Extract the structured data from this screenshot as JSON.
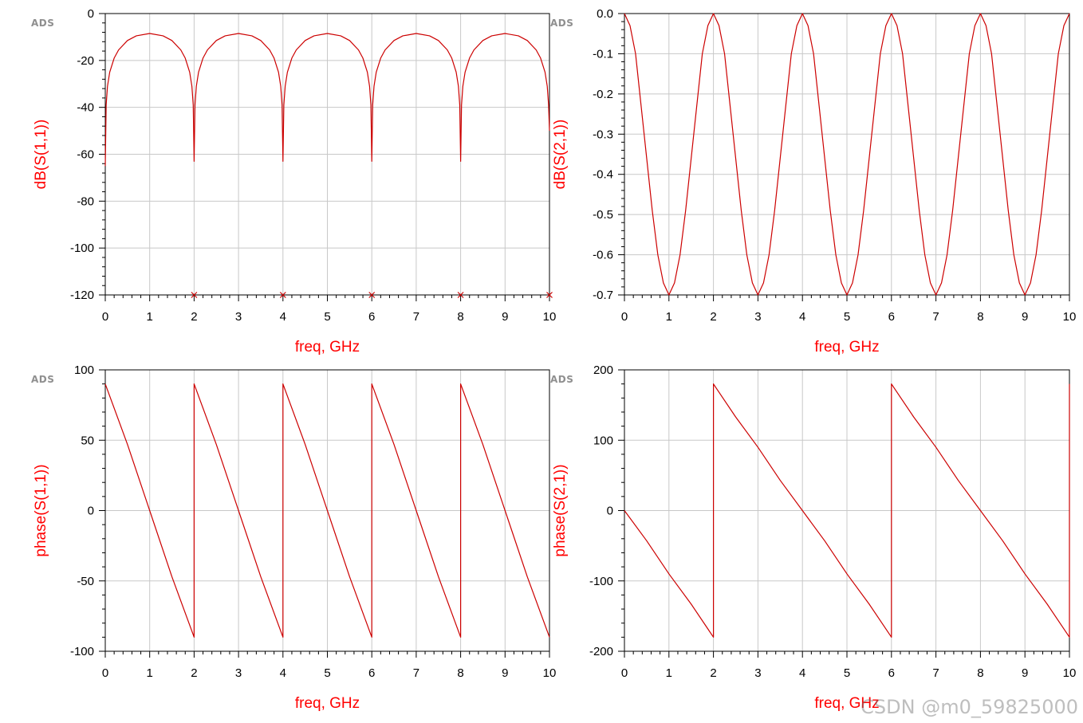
{
  "watermark": "CSDN @m0_59825000",
  "colors": {
    "trace": "#cc0000",
    "label": "#ff0000",
    "grid": "#c8c8c8",
    "frame": "#000000",
    "logo": "#8f8f8f"
  },
  "chart_data": [
    {
      "type": "line",
      "logo": "ADS",
      "xlabel": "freq, GHz",
      "ylabel": "dB(S(1,1))",
      "xlim": [
        0,
        10
      ],
      "ylim": [
        -120,
        0
      ],
      "xticks": [
        "0",
        "1",
        "2",
        "3",
        "4",
        "5",
        "6",
        "7",
        "8",
        "9",
        "10"
      ],
      "yticks": [
        "0",
        "-20",
        "-40",
        "-60",
        "-80",
        "-100",
        "-120"
      ],
      "grid": true,
      "series": [
        {
          "x": [
            0,
            0.02,
            0.05,
            0.1,
            0.2,
            0.3,
            0.5,
            0.7,
            1.0,
            1.3,
            1.5,
            1.7,
            1.8,
            1.9,
            1.95,
            1.98,
            2.0,
            2.02,
            2.05,
            2.1,
            2.2,
            2.3,
            2.5,
            2.7,
            3.0,
            3.3,
            3.5,
            3.7,
            3.8,
            3.9,
            3.95,
            3.98,
            4.0,
            4.02,
            4.05,
            4.1,
            4.2,
            4.3,
            4.5,
            4.7,
            5.0,
            5.3,
            5.5,
            5.7,
            5.8,
            5.9,
            5.95,
            5.98,
            6.0,
            6.02,
            6.05,
            6.1,
            6.2,
            6.3,
            6.5,
            6.7,
            7.0,
            7.3,
            7.5,
            7.7,
            7.8,
            7.9,
            7.95,
            7.98,
            8.0,
            8.02,
            8.05,
            8.1,
            8.2,
            8.3,
            8.5,
            8.7,
            9.0,
            9.3,
            9.5,
            9.7,
            9.8,
            9.9,
            9.95,
            9.98,
            10.0
          ],
          "values": [
            -65,
            -39,
            -31,
            -25,
            -19,
            -15.5,
            -11.5,
            -9.5,
            -8.5,
            -9.5,
            -11.5,
            -15.5,
            -19,
            -25,
            -31,
            -39,
            -63,
            -39,
            -31,
            -25,
            -19,
            -15.5,
            -11.5,
            -9.5,
            -8.5,
            -9.5,
            -11.5,
            -15.5,
            -19,
            -25,
            -31,
            -39,
            -63,
            -39,
            -31,
            -25,
            -19,
            -15.5,
            -11.5,
            -9.5,
            -8.5,
            -9.5,
            -11.5,
            -15.5,
            -19,
            -25,
            -31,
            -39,
            -63,
            -39,
            -31,
            -25,
            -19,
            -15.5,
            -11.5,
            -9.5,
            -8.5,
            -9.5,
            -11.5,
            -15.5,
            -19,
            -25,
            -31,
            -39,
            -63,
            -39,
            -31,
            -25,
            -19,
            -15.5,
            -11.5,
            -9.5,
            -8.5,
            -9.5,
            -11.5,
            -15.5,
            -19,
            -25,
            -31,
            -39,
            -50
          ]
        }
      ],
      "markers": {
        "shape": "x",
        "x": [
          2,
          4,
          6,
          8,
          10
        ],
        "y": [
          -120,
          -120,
          -120,
          -120,
          -120
        ]
      }
    },
    {
      "type": "line",
      "logo": "ADS",
      "xlabel": "freq, GHz",
      "ylabel": "dB(S(2,1))",
      "xlim": [
        0,
        10
      ],
      "ylim": [
        -0.7,
        0
      ],
      "xticks": [
        "0",
        "1",
        "2",
        "3",
        "4",
        "5",
        "6",
        "7",
        "8",
        "9",
        "10"
      ],
      "yticks": [
        "0.0",
        "-0.1",
        "-0.2",
        "-0.3",
        "-0.4",
        "-0.5",
        "-0.6",
        "-0.7"
      ],
      "grid": true,
      "series": [
        {
          "x": [
            0,
            0.125,
            0.25,
            0.375,
            0.5,
            0.625,
            0.75,
            0.875,
            1.0,
            1.125,
            1.25,
            1.375,
            1.5,
            1.625,
            1.75,
            1.875,
            2.0,
            2.125,
            2.25,
            2.375,
            2.5,
            2.625,
            2.75,
            2.875,
            3.0,
            3.125,
            3.25,
            3.375,
            3.5,
            3.625,
            3.75,
            3.875,
            4.0,
            4.125,
            4.25,
            4.375,
            4.5,
            4.625,
            4.75,
            4.875,
            5.0,
            5.125,
            5.25,
            5.375,
            5.5,
            5.625,
            5.75,
            5.875,
            6.0,
            6.125,
            6.25,
            6.375,
            6.5,
            6.625,
            6.75,
            6.875,
            7.0,
            7.125,
            7.25,
            7.375,
            7.5,
            7.625,
            7.75,
            7.875,
            8.0,
            8.125,
            8.25,
            8.375,
            8.5,
            8.625,
            8.75,
            8.875,
            9.0,
            9.125,
            9.25,
            9.375,
            9.5,
            9.625,
            9.75,
            9.875,
            10.0
          ],
          "values": [
            0.0,
            -0.03,
            -0.1,
            -0.23,
            -0.36,
            -0.49,
            -0.6,
            -0.67,
            -0.7,
            -0.67,
            -0.6,
            -0.49,
            -0.36,
            -0.23,
            -0.1,
            -0.03,
            0.0,
            -0.03,
            -0.1,
            -0.23,
            -0.36,
            -0.49,
            -0.6,
            -0.67,
            -0.7,
            -0.67,
            -0.6,
            -0.49,
            -0.36,
            -0.23,
            -0.1,
            -0.03,
            0.0,
            -0.03,
            -0.1,
            -0.23,
            -0.36,
            -0.49,
            -0.6,
            -0.67,
            -0.7,
            -0.67,
            -0.6,
            -0.49,
            -0.36,
            -0.23,
            -0.1,
            -0.03,
            0.0,
            -0.03,
            -0.1,
            -0.23,
            -0.36,
            -0.49,
            -0.6,
            -0.67,
            -0.7,
            -0.67,
            -0.6,
            -0.49,
            -0.36,
            -0.23,
            -0.1,
            -0.03,
            0.0,
            -0.03,
            -0.1,
            -0.23,
            -0.36,
            -0.49,
            -0.6,
            -0.67,
            -0.7,
            -0.67,
            -0.6,
            -0.49,
            -0.36,
            -0.23,
            -0.1,
            -0.03,
            0.0
          ]
        }
      ]
    },
    {
      "type": "line",
      "logo": "ADS",
      "xlabel": "freq, GHz",
      "ylabel": "phase(S(1,1))",
      "xlim": [
        0,
        10
      ],
      "ylim": [
        -100,
        100
      ],
      "xticks": [
        "0",
        "1",
        "2",
        "3",
        "4",
        "5",
        "6",
        "7",
        "8",
        "9",
        "10"
      ],
      "yticks": [
        "100",
        "50",
        "0",
        "-50",
        "-100"
      ],
      "grid": true,
      "series": [
        {
          "x": [
            0,
            0.5,
            1.0,
            1.5,
            2.0,
            2.0,
            2.5,
            3.0,
            3.5,
            4.0,
            4.0,
            4.5,
            5.0,
            5.5,
            6.0,
            6.0,
            6.5,
            7.0,
            7.5,
            8.0,
            8.0,
            8.5,
            9.0,
            9.5,
            10.0
          ],
          "values": [
            90,
            47,
            0,
            -47,
            -90,
            90,
            47,
            0,
            -47,
            -90,
            90,
            47,
            0,
            -47,
            -90,
            90,
            47,
            0,
            -47,
            -90,
            90,
            47,
            0,
            -47,
            -90
          ]
        }
      ]
    },
    {
      "type": "line",
      "logo": "ADS",
      "xlabel": "freq, GHz",
      "ylabel": "phase(S(2,1))",
      "xlim": [
        0,
        10
      ],
      "ylim": [
        -200,
        200
      ],
      "xticks": [
        "0",
        "1",
        "2",
        "3",
        "4",
        "5",
        "6",
        "7",
        "8",
        "9",
        "10"
      ],
      "yticks": [
        "200",
        "100",
        "0",
        "-100",
        "-200"
      ],
      "grid": true,
      "series": [
        {
          "x": [
            0,
            0.5,
            1.0,
            1.5,
            2.0,
            2.0,
            2.5,
            3.0,
            3.5,
            4.0,
            4.5,
            5.0,
            5.5,
            6.0,
            6.0,
            6.5,
            7.0,
            7.5,
            8.0,
            8.5,
            9.0,
            9.5,
            10.0,
            10.0
          ],
          "values": [
            0,
            -43,
            -90,
            -133,
            -180,
            180,
            133,
            90,
            43,
            0,
            -43,
            -90,
            -133,
            -180,
            180,
            133,
            90,
            43,
            0,
            -43,
            -90,
            -133,
            -180,
            180
          ]
        }
      ]
    }
  ]
}
